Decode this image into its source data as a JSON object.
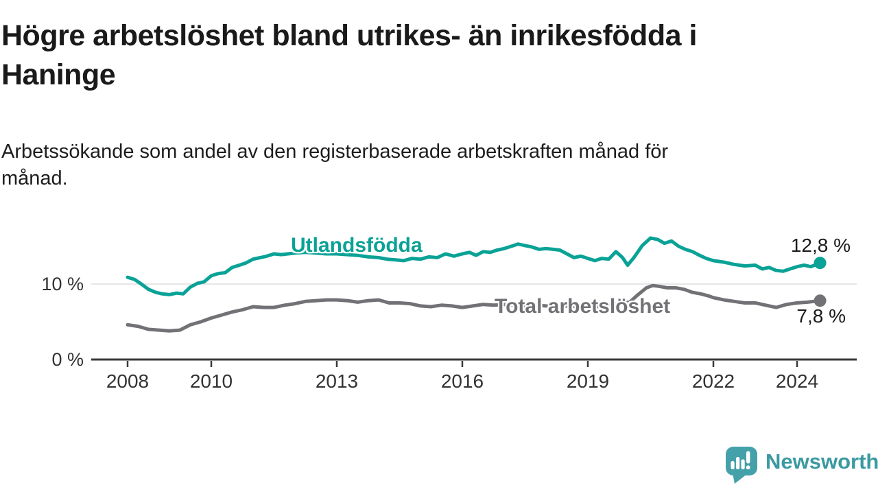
{
  "title": {
    "full": "Högre arbetslöshet bland utrikes- än inrikesfödda i Haninge",
    "lines": [
      "Högre arbetslöshet bland utrikes- än inrikesfödda i",
      "Haninge"
    ]
  },
  "subtitle": {
    "full": "Arbetssökande som andel av den registerbaserade arbetskraften månad för månad.",
    "lines": [
      "Arbetssökande som andel av den registerbaserade arbetskraften månad för",
      "månad."
    ]
  },
  "branding": {
    "logo_text": "Newsworthy",
    "logo_icon": "speech-bubble-bar-chart-icon",
    "text_color": "#3a99a1",
    "icon_color": "#45a1a9"
  },
  "chart_data": {
    "type": "line",
    "title": "Högre arbetslöshet bland utrikes- än inrikesfödda i Haninge",
    "subtitle": "Arbetssökande som andel av den registerbaserade arbetskraften månad för månad.",
    "xlabel": "",
    "ylabel": "",
    "x_range": [
      2007.1,
      2025.4
    ],
    "y_range": [
      0,
      17.6
    ],
    "grid": "horizontal-10-only",
    "legend_position": "inline-labels-on-lines",
    "x_ticks": [
      {
        "value": 2008,
        "label": "2008"
      },
      {
        "value": 2010,
        "label": "2010"
      },
      {
        "value": 2013,
        "label": "2013"
      },
      {
        "value": 2016,
        "label": "2016"
      },
      {
        "value": 2019,
        "label": "2019"
      },
      {
        "value": 2022,
        "label": "2022"
      },
      {
        "value": 2024,
        "label": "2024"
      }
    ],
    "y_ticks": [
      {
        "value": 0,
        "label": "0 %"
      },
      {
        "value": 10,
        "label": "10 %"
      }
    ],
    "axis_color": "#3a3a3a",
    "grid_color": "#dddddd",
    "series": [
      {
        "name": "Utlandsfödda",
        "color": "#0aa296",
        "end_label": "12,8 %",
        "end_value": 12.8,
        "points": [
          [
            2008.0,
            10.9
          ],
          [
            2008.17,
            10.6
          ],
          [
            2008.33,
            10.0
          ],
          [
            2008.5,
            9.3
          ],
          [
            2008.67,
            8.9
          ],
          [
            2008.83,
            8.7
          ],
          [
            2009.0,
            8.6
          ],
          [
            2009.17,
            8.8
          ],
          [
            2009.33,
            8.7
          ],
          [
            2009.5,
            9.6
          ],
          [
            2009.67,
            10.1
          ],
          [
            2009.83,
            10.3
          ],
          [
            2010.0,
            11.1
          ],
          [
            2010.17,
            11.4
          ],
          [
            2010.33,
            11.5
          ],
          [
            2010.5,
            12.2
          ],
          [
            2010.67,
            12.5
          ],
          [
            2010.83,
            12.8
          ],
          [
            2011.0,
            13.3
          ],
          [
            2011.17,
            13.5
          ],
          [
            2011.33,
            13.7
          ],
          [
            2011.5,
            14.0
          ],
          [
            2011.67,
            13.9
          ],
          [
            2011.83,
            14.0
          ],
          [
            2012.0,
            14.1
          ],
          [
            2012.25,
            14.2
          ],
          [
            2012.5,
            14.1
          ],
          [
            2012.75,
            14.0
          ],
          [
            2013.0,
            14.0
          ],
          [
            2013.25,
            13.9
          ],
          [
            2013.5,
            13.8
          ],
          [
            2013.75,
            13.6
          ],
          [
            2014.0,
            13.5
          ],
          [
            2014.2,
            13.3
          ],
          [
            2014.4,
            13.2
          ],
          [
            2014.6,
            13.1
          ],
          [
            2014.8,
            13.4
          ],
          [
            2015.0,
            13.3
          ],
          [
            2015.2,
            13.6
          ],
          [
            2015.4,
            13.5
          ],
          [
            2015.6,
            14.0
          ],
          [
            2015.8,
            13.7
          ],
          [
            2016.0,
            14.0
          ],
          [
            2016.17,
            14.2
          ],
          [
            2016.33,
            13.8
          ],
          [
            2016.5,
            14.3
          ],
          [
            2016.67,
            14.2
          ],
          [
            2016.83,
            14.5
          ],
          [
            2017.0,
            14.7
          ],
          [
            2017.17,
            15.0
          ],
          [
            2017.33,
            15.3
          ],
          [
            2017.5,
            15.1
          ],
          [
            2017.67,
            14.9
          ],
          [
            2017.83,
            14.6
          ],
          [
            2018.0,
            14.7
          ],
          [
            2018.17,
            14.6
          ],
          [
            2018.33,
            14.5
          ],
          [
            2018.5,
            14.0
          ],
          [
            2018.67,
            13.5
          ],
          [
            2018.83,
            13.7
          ],
          [
            2019.0,
            13.4
          ],
          [
            2019.17,
            13.1
          ],
          [
            2019.33,
            13.4
          ],
          [
            2019.5,
            13.3
          ],
          [
            2019.67,
            14.3
          ],
          [
            2019.83,
            13.5
          ],
          [
            2019.95,
            12.5
          ],
          [
            2020.1,
            13.5
          ],
          [
            2020.3,
            15.1
          ],
          [
            2020.5,
            16.1
          ],
          [
            2020.67,
            15.9
          ],
          [
            2020.83,
            15.4
          ],
          [
            2021.0,
            15.7
          ],
          [
            2021.17,
            15.0
          ],
          [
            2021.33,
            14.6
          ],
          [
            2021.5,
            14.3
          ],
          [
            2021.67,
            13.8
          ],
          [
            2021.83,
            13.4
          ],
          [
            2022.0,
            13.1
          ],
          [
            2022.25,
            12.9
          ],
          [
            2022.5,
            12.6
          ],
          [
            2022.75,
            12.4
          ],
          [
            2023.0,
            12.5
          ],
          [
            2023.17,
            12.0
          ],
          [
            2023.33,
            12.2
          ],
          [
            2023.5,
            11.8
          ],
          [
            2023.67,
            11.7
          ],
          [
            2023.83,
            12.0
          ],
          [
            2024.0,
            12.3
          ],
          [
            2024.17,
            12.5
          ],
          [
            2024.33,
            12.3
          ],
          [
            2024.55,
            12.8
          ]
        ]
      },
      {
        "name": "Total arbetslöshet",
        "color": "#727276",
        "end_label": "7,8 %",
        "end_value": 7.8,
        "points": [
          [
            2008.0,
            4.6
          ],
          [
            2008.25,
            4.4
          ],
          [
            2008.5,
            4.0
          ],
          [
            2008.75,
            3.9
          ],
          [
            2009.0,
            3.8
          ],
          [
            2009.25,
            3.9
          ],
          [
            2009.5,
            4.6
          ],
          [
            2009.75,
            5.0
          ],
          [
            2010.0,
            5.5
          ],
          [
            2010.25,
            5.9
          ],
          [
            2010.5,
            6.3
          ],
          [
            2010.75,
            6.6
          ],
          [
            2011.0,
            7.0
          ],
          [
            2011.25,
            6.9
          ],
          [
            2011.5,
            6.9
          ],
          [
            2011.75,
            7.2
          ],
          [
            2012.0,
            7.4
          ],
          [
            2012.25,
            7.7
          ],
          [
            2012.5,
            7.8
          ],
          [
            2012.75,
            7.9
          ],
          [
            2013.0,
            7.9
          ],
          [
            2013.25,
            7.8
          ],
          [
            2013.5,
            7.6
          ],
          [
            2013.75,
            7.8
          ],
          [
            2014.0,
            7.9
          ],
          [
            2014.25,
            7.5
          ],
          [
            2014.5,
            7.5
          ],
          [
            2014.75,
            7.4
          ],
          [
            2015.0,
            7.1
          ],
          [
            2015.25,
            7.0
          ],
          [
            2015.5,
            7.2
          ],
          [
            2015.75,
            7.1
          ],
          [
            2016.0,
            6.9
          ],
          [
            2016.25,
            7.1
          ],
          [
            2016.5,
            7.3
          ],
          [
            2016.75,
            7.2
          ],
          [
            2017.0,
            7.3
          ],
          [
            2017.25,
            7.2
          ],
          [
            2017.5,
            7.1
          ],
          [
            2017.75,
            7.2
          ],
          [
            2018.0,
            7.1
          ],
          [
            2018.25,
            7.0
          ],
          [
            2018.5,
            7.1
          ],
          [
            2018.75,
            7.0
          ],
          [
            2019.0,
            7.1
          ],
          [
            2019.25,
            7.0
          ],
          [
            2019.5,
            7.2
          ],
          [
            2019.75,
            7.4
          ],
          [
            2020.0,
            7.6
          ],
          [
            2020.2,
            8.6
          ],
          [
            2020.4,
            9.5
          ],
          [
            2020.55,
            9.8
          ],
          [
            2020.7,
            9.7
          ],
          [
            2020.9,
            9.5
          ],
          [
            2021.1,
            9.5
          ],
          [
            2021.3,
            9.3
          ],
          [
            2021.5,
            8.9
          ],
          [
            2021.7,
            8.7
          ],
          [
            2021.9,
            8.4
          ],
          [
            2022.0,
            8.2
          ],
          [
            2022.25,
            7.9
          ],
          [
            2022.5,
            7.7
          ],
          [
            2022.75,
            7.5
          ],
          [
            2023.0,
            7.5
          ],
          [
            2023.25,
            7.2
          ],
          [
            2023.5,
            6.9
          ],
          [
            2023.75,
            7.3
          ],
          [
            2024.0,
            7.5
          ],
          [
            2024.25,
            7.6
          ],
          [
            2024.55,
            7.8
          ]
        ]
      }
    ]
  }
}
